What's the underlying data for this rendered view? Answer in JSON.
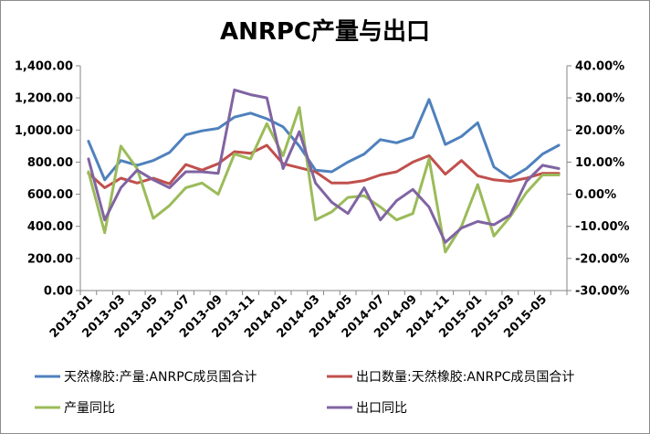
{
  "chart_data": {
    "type": "line",
    "title": "ANRPC产量与出口",
    "x": [
      "2013-01",
      "2013-02",
      "2013-03",
      "2013-04",
      "2013-05",
      "2013-06",
      "2013-07",
      "2013-08",
      "2013-09",
      "2013-10",
      "2013-11",
      "2013-12",
      "2014-01",
      "2014-02",
      "2014-03",
      "2014-04",
      "2014-05",
      "2014-06",
      "2014-07",
      "2014-08",
      "2014-09",
      "2014-10",
      "2014-11",
      "2014-12",
      "2015-01",
      "2015-02",
      "2015-03",
      "2015-04",
      "2015-05",
      "2015-06"
    ],
    "x_tick_labels": [
      "2013-01",
      "2013-03",
      "2013-05",
      "2013-07",
      "2013-09",
      "2013-11",
      "2014-01",
      "2014-03",
      "2014-05",
      "2014-07",
      "2014-09",
      "2014-11",
      "2015-01",
      "2015-03",
      "2015-05"
    ],
    "y_left": {
      "ticks": [
        "0.00",
        "200.00",
        "400.00",
        "600.00",
        "800.00",
        "1,000.00",
        "1,200.00",
        "1,400.00"
      ],
      "ylim": [
        0,
        1400
      ]
    },
    "y_right": {
      "ticks": [
        "-30.00%",
        "-20.00%",
        "-10.00%",
        "0.00%",
        "10.00%",
        "20.00%",
        "30.00%",
        "40.00%"
      ],
      "ylim": [
        -30,
        40
      ]
    },
    "grid": false,
    "legend_placement": "bottom",
    "series": [
      {
        "name": "天然橡胶:产量:ANRPC成员国合计",
        "axis": "left",
        "color": "#4f81bd",
        "values": [
          930,
          690,
          810,
          780,
          810,
          860,
          970,
          995,
          1010,
          1080,
          1105,
          1070,
          1020,
          900,
          750,
          740,
          800,
          850,
          940,
          920,
          955,
          1190,
          910,
          960,
          1045,
          770,
          700,
          760,
          850,
          905
        ]
      },
      {
        "name": "出口数量:天然橡胶:ANRPC成员国合计",
        "axis": "left",
        "color": "#c0504d",
        "values": [
          730,
          640,
          700,
          670,
          700,
          665,
          785,
          750,
          790,
          865,
          855,
          905,
          790,
          765,
          740,
          670,
          670,
          685,
          720,
          740,
          800,
          840,
          725,
          810,
          715,
          690,
          680,
          700,
          730,
          730
        ]
      },
      {
        "name": "产量同比",
        "axis": "right",
        "color": "#9bbb59",
        "values": [
          7,
          -12,
          15,
          8,
          -7.5,
          -3.5,
          2,
          3.5,
          0,
          12.5,
          11,
          22,
          12,
          27,
          -8,
          -5.5,
          -1,
          -0.5,
          -4,
          -8,
          -6,
          11,
          -18,
          -10,
          3,
          -13,
          -7,
          0.5,
          6,
          6
        ]
      },
      {
        "name": "出口同比",
        "axis": "right",
        "color": "#8064a2",
        "values": [
          11,
          -8,
          2,
          7.5,
          4.5,
          2,
          7,
          7,
          6.5,
          32.5,
          31,
          30,
          8,
          19.5,
          3.5,
          -2.5,
          -6,
          2,
          -8,
          -2,
          1.5,
          -4,
          -15,
          -10.5,
          -8.5,
          -9.5,
          -6.5,
          4,
          9,
          8
        ]
      }
    ]
  }
}
